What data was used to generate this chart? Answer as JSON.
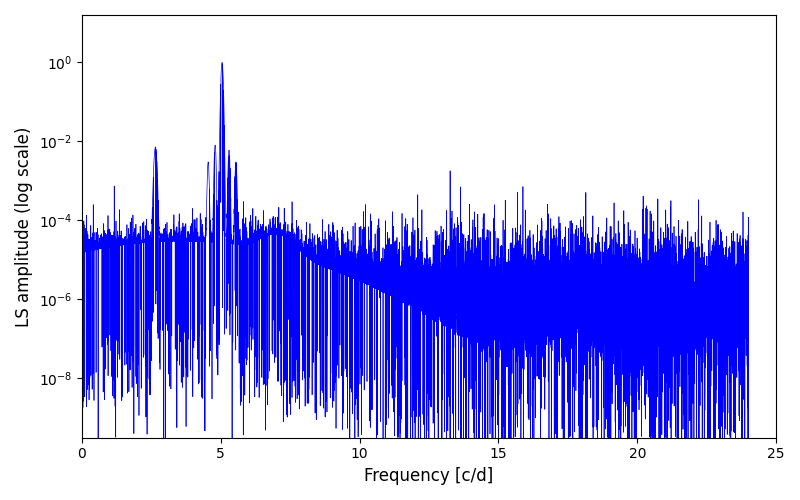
{
  "xlabel": "Frequency [c/d]",
  "ylabel": "LS amplitude (log scale)",
  "xlim": [
    0,
    25
  ],
  "ylim_log": [
    -9.5,
    1.2
  ],
  "line_color": "#0000ff",
  "line_width": 0.5,
  "background_color": "#ffffff",
  "freq_max": 24.0,
  "n_points": 15000,
  "peak1_freq": 2.65,
  "peak1_amp": 0.007,
  "peak2_freq": 5.05,
  "peak2_amp": 1.0,
  "seed": 123
}
